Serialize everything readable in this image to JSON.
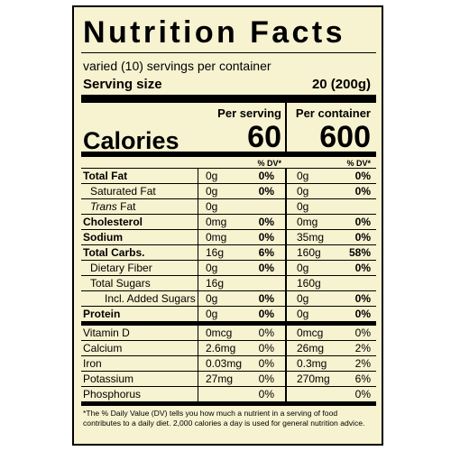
{
  "label": {
    "title": "Nutrition Facts",
    "servings_per_container": "varied (10) servings per container",
    "serving_size_label": "Serving size",
    "serving_size_value": "20  (200g)",
    "per_serving_label": "Per serving",
    "per_container_label": "Per container",
    "calories_label": "Calories",
    "calories_per_serving": "60",
    "calories_per_container": "600",
    "dv_header": "% DV*",
    "nutrients": [
      {
        "name": "Total Fat",
        "bold": true,
        "indent": 0,
        "serving": "0g",
        "serving_dv": "0%",
        "container": "0g",
        "container_dv": "0%"
      },
      {
        "name": "Saturated Fat",
        "bold": false,
        "indent": 1,
        "serving": "0g",
        "serving_dv": "0%",
        "container": "0g",
        "container_dv": "0%"
      },
      {
        "name_italic": "Trans",
        "name": " Fat",
        "bold": false,
        "indent": 1,
        "serving": "0g",
        "serving_dv": "",
        "container": "0g",
        "container_dv": ""
      },
      {
        "name": "Cholesterol",
        "bold": true,
        "indent": 0,
        "serving": "0mg",
        "serving_dv": "0%",
        "container": "0mg",
        "container_dv": "0%"
      },
      {
        "name": "Sodium",
        "bold": true,
        "indent": 0,
        "serving": "0mg",
        "serving_dv": "0%",
        "container": "35mg",
        "container_dv": "0%"
      },
      {
        "name": "Total Carbs.",
        "bold": true,
        "indent": 0,
        "serving": "16g",
        "serving_dv": "6%",
        "container": "160g",
        "container_dv": "58%"
      },
      {
        "name": "Dietary Fiber",
        "bold": false,
        "indent": 1,
        "serving": "0g",
        "serving_dv": "0%",
        "container": "0g",
        "container_dv": "0%"
      },
      {
        "name": "Total Sugars",
        "bold": false,
        "indent": 1,
        "serving": "16g",
        "serving_dv": "",
        "container": "160g",
        "container_dv": ""
      },
      {
        "name": "Incl. Added Sugars",
        "bold": false,
        "indent": 2,
        "serving": "0g",
        "serving_dv": "0%",
        "container": "0g",
        "container_dv": "0%"
      },
      {
        "name": "Protein",
        "bold": true,
        "indent": 0,
        "serving": "0g",
        "serving_dv": "0%",
        "container": "0g",
        "container_dv": "0%"
      }
    ],
    "vitamins": [
      {
        "name": "Vitamin D",
        "serving": "0mcg",
        "serving_dv": "0%",
        "container": "0mcg",
        "container_dv": "0%"
      },
      {
        "name": "Calcium",
        "serving": "2.6mg",
        "serving_dv": "0%",
        "container": "26mg",
        "container_dv": "2%"
      },
      {
        "name": "Iron",
        "serving": "0.03mg",
        "serving_dv": "0%",
        "container": "0.3mg",
        "container_dv": "2%"
      },
      {
        "name": "Potassium",
        "serving": "27mg",
        "serving_dv": "0%",
        "container": "270mg",
        "container_dv": "6%"
      },
      {
        "name": "Phosphorus",
        "serving": "",
        "serving_dv": "0%",
        "container": "",
        "container_dv": "0%"
      }
    ],
    "footnote": "*The % Daily Value (DV) tells you how much a nutrient in a serving of food contributes to a daily diet. 2,000 calories a day is used for general nutrition advice.",
    "colors": {
      "background": "#f7f2cf",
      "ink": "#000000"
    }
  }
}
